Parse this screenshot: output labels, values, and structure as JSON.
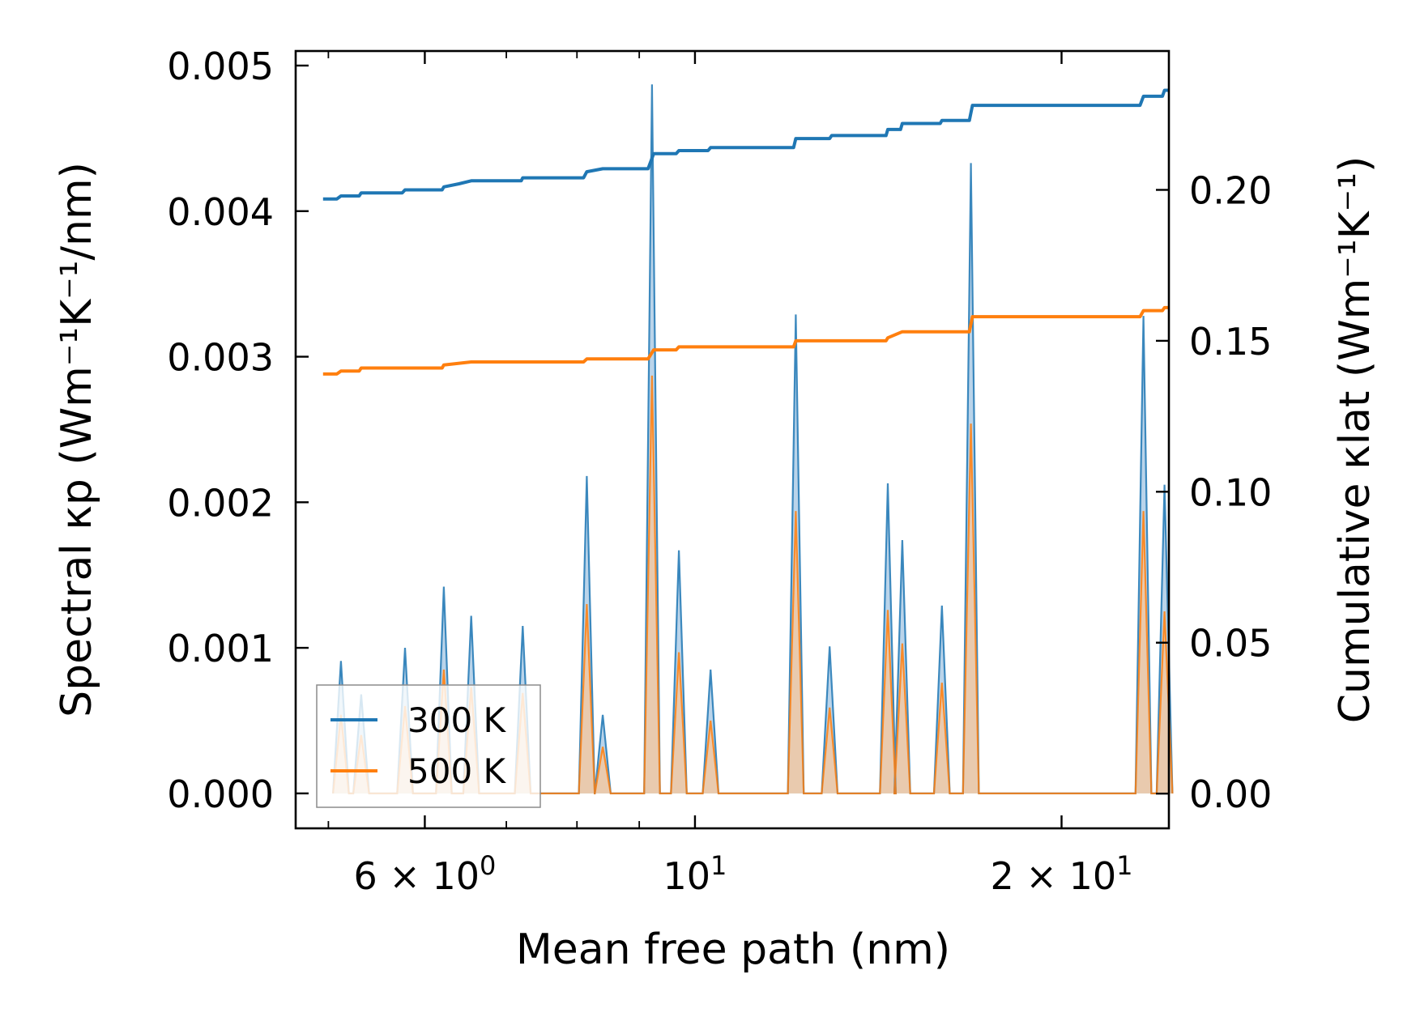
{
  "chart_data": {
    "type": "line",
    "title": "",
    "xlabel": "Mean free path (nm)",
    "ylabel_left": "Spectral κp (Wm⁻¹K⁻¹/nm)",
    "ylabel_right": "Cumulative κlat (Wm⁻¹K⁻¹)",
    "xscale": "log",
    "xlim": [
      4.7,
      24.5
    ],
    "ylim_left": [
      -0.00024,
      0.0051
    ],
    "ylim_right": [
      -0.0115,
      0.246
    ],
    "x_tick_labels": [
      {
        "value": 6,
        "base": "6 × 10",
        "exp": "0"
      },
      {
        "value": 10,
        "base": "10",
        "exp": "1"
      },
      {
        "value": 20,
        "base": "2 × 10",
        "exp": "1"
      }
    ],
    "x_minor_ticks": [
      5,
      7,
      8,
      9
    ],
    "y_left_ticks": [
      {
        "value": 0.0,
        "label": "0.000"
      },
      {
        "value": 0.001,
        "label": "0.001"
      },
      {
        "value": 0.002,
        "label": "0.002"
      },
      {
        "value": 0.003,
        "label": "0.003"
      },
      {
        "value": 0.004,
        "label": "0.004"
      },
      {
        "value": 0.005,
        "label": "0.005"
      }
    ],
    "y_right_ticks": [
      {
        "value": 0.0,
        "label": "0.00"
      },
      {
        "value": 0.05,
        "label": "0.05"
      },
      {
        "value": 0.1,
        "label": "0.10"
      },
      {
        "value": 0.15,
        "label": "0.15"
      },
      {
        "value": 0.2,
        "label": "0.20"
      }
    ],
    "peak_halfwidth_log10": 0.0065,
    "spectral": [
      {
        "x": 5.12,
        "y300": 0.00091,
        "y500": 0.00054
      },
      {
        "x": 5.32,
        "y300": 0.00068,
        "y500": 0.0004
      },
      {
        "x": 5.78,
        "y300": 0.001,
        "y500": 0.0006
      },
      {
        "x": 6.22,
        "y300": 0.00142,
        "y500": 0.00085
      },
      {
        "x": 6.55,
        "y300": 0.00122,
        "y500": 0.00073
      },
      {
        "x": 7.22,
        "y300": 0.00115,
        "y500": 0.00069
      },
      {
        "x": 8.15,
        "y300": 0.00218,
        "y500": 0.0013
      },
      {
        "x": 8.4,
        "y300": 0.00054,
        "y500": 0.00032
      },
      {
        "x": 9.22,
        "y300": 0.00487,
        "y500": 0.00287
      },
      {
        "x": 9.7,
        "y300": 0.00167,
        "y500": 0.00097
      },
      {
        "x": 10.3,
        "y300": 0.00085,
        "y500": 0.0005
      },
      {
        "x": 12.1,
        "y300": 0.00329,
        "y500": 0.00194
      },
      {
        "x": 12.9,
        "y300": 0.00101,
        "y500": 0.00059
      },
      {
        "x": 14.4,
        "y300": 0.00213,
        "y500": 0.00126
      },
      {
        "x": 14.8,
        "y300": 0.00174,
        "y500": 0.00103
      },
      {
        "x": 15.95,
        "y300": 0.00129,
        "y500": 0.00076
      },
      {
        "x": 16.85,
        "y300": 0.00433,
        "y500": 0.00254
      },
      {
        "x": 23.35,
        "y300": 0.00328,
        "y500": 0.00194
      },
      {
        "x": 24.3,
        "y300": 0.00212,
        "y500": 0.00125
      }
    ],
    "series": [
      {
        "name": "300 K",
        "color": "#1f77b4",
        "fill_color": "#aecde6",
        "cumulative": [
          [
            4.95,
            0.197
          ],
          [
            5.08,
            0.197
          ],
          [
            5.12,
            0.198
          ],
          [
            5.3,
            0.198
          ],
          [
            5.32,
            0.199
          ],
          [
            5.75,
            0.199
          ],
          [
            5.78,
            0.2
          ],
          [
            6.2,
            0.2
          ],
          [
            6.22,
            0.201
          ],
          [
            6.4,
            0.202
          ],
          [
            6.55,
            0.203
          ],
          [
            7.2,
            0.203
          ],
          [
            7.22,
            0.204
          ],
          [
            8.1,
            0.204
          ],
          [
            8.15,
            0.206
          ],
          [
            8.4,
            0.207
          ],
          [
            9.15,
            0.207
          ],
          [
            9.25,
            0.212
          ],
          [
            9.65,
            0.212
          ],
          [
            9.7,
            0.213
          ],
          [
            10.25,
            0.213
          ],
          [
            10.3,
            0.214
          ],
          [
            12.05,
            0.214
          ],
          [
            12.1,
            0.217
          ],
          [
            12.9,
            0.217
          ],
          [
            12.95,
            0.218
          ],
          [
            14.35,
            0.218
          ],
          [
            14.4,
            0.22
          ],
          [
            14.75,
            0.22
          ],
          [
            14.8,
            0.222
          ],
          [
            15.9,
            0.222
          ],
          [
            15.95,
            0.223
          ],
          [
            16.8,
            0.223
          ],
          [
            16.9,
            0.228
          ],
          [
            23.2,
            0.228
          ],
          [
            23.35,
            0.231
          ],
          [
            24.2,
            0.231
          ],
          [
            24.3,
            0.233
          ],
          [
            24.5,
            0.233
          ]
        ]
      },
      {
        "name": "500 K",
        "color": "#ff7f0e",
        "fill_color": "#f8c79a",
        "cumulative": [
          [
            4.95,
            0.139
          ],
          [
            5.08,
            0.139
          ],
          [
            5.12,
            0.14
          ],
          [
            5.3,
            0.14
          ],
          [
            5.32,
            0.141
          ],
          [
            6.2,
            0.141
          ],
          [
            6.22,
            0.142
          ],
          [
            6.55,
            0.143
          ],
          [
            8.1,
            0.143
          ],
          [
            8.15,
            0.144
          ],
          [
            9.15,
            0.144
          ],
          [
            9.25,
            0.147
          ],
          [
            9.65,
            0.147
          ],
          [
            9.7,
            0.148
          ],
          [
            12.05,
            0.148
          ],
          [
            12.1,
            0.15
          ],
          [
            14.35,
            0.15
          ],
          [
            14.4,
            0.151
          ],
          [
            14.8,
            0.153
          ],
          [
            16.8,
            0.153
          ],
          [
            16.9,
            0.158
          ],
          [
            23.2,
            0.158
          ],
          [
            23.35,
            0.16
          ],
          [
            24.2,
            0.16
          ],
          [
            24.3,
            0.161
          ],
          [
            24.5,
            0.161
          ]
        ]
      }
    ],
    "legend": {
      "position": "lower-left",
      "entries": [
        {
          "label": "300 K",
          "color": "#1f77b4"
        },
        {
          "label": "500 K",
          "color": "#ff7f0e"
        }
      ]
    }
  }
}
